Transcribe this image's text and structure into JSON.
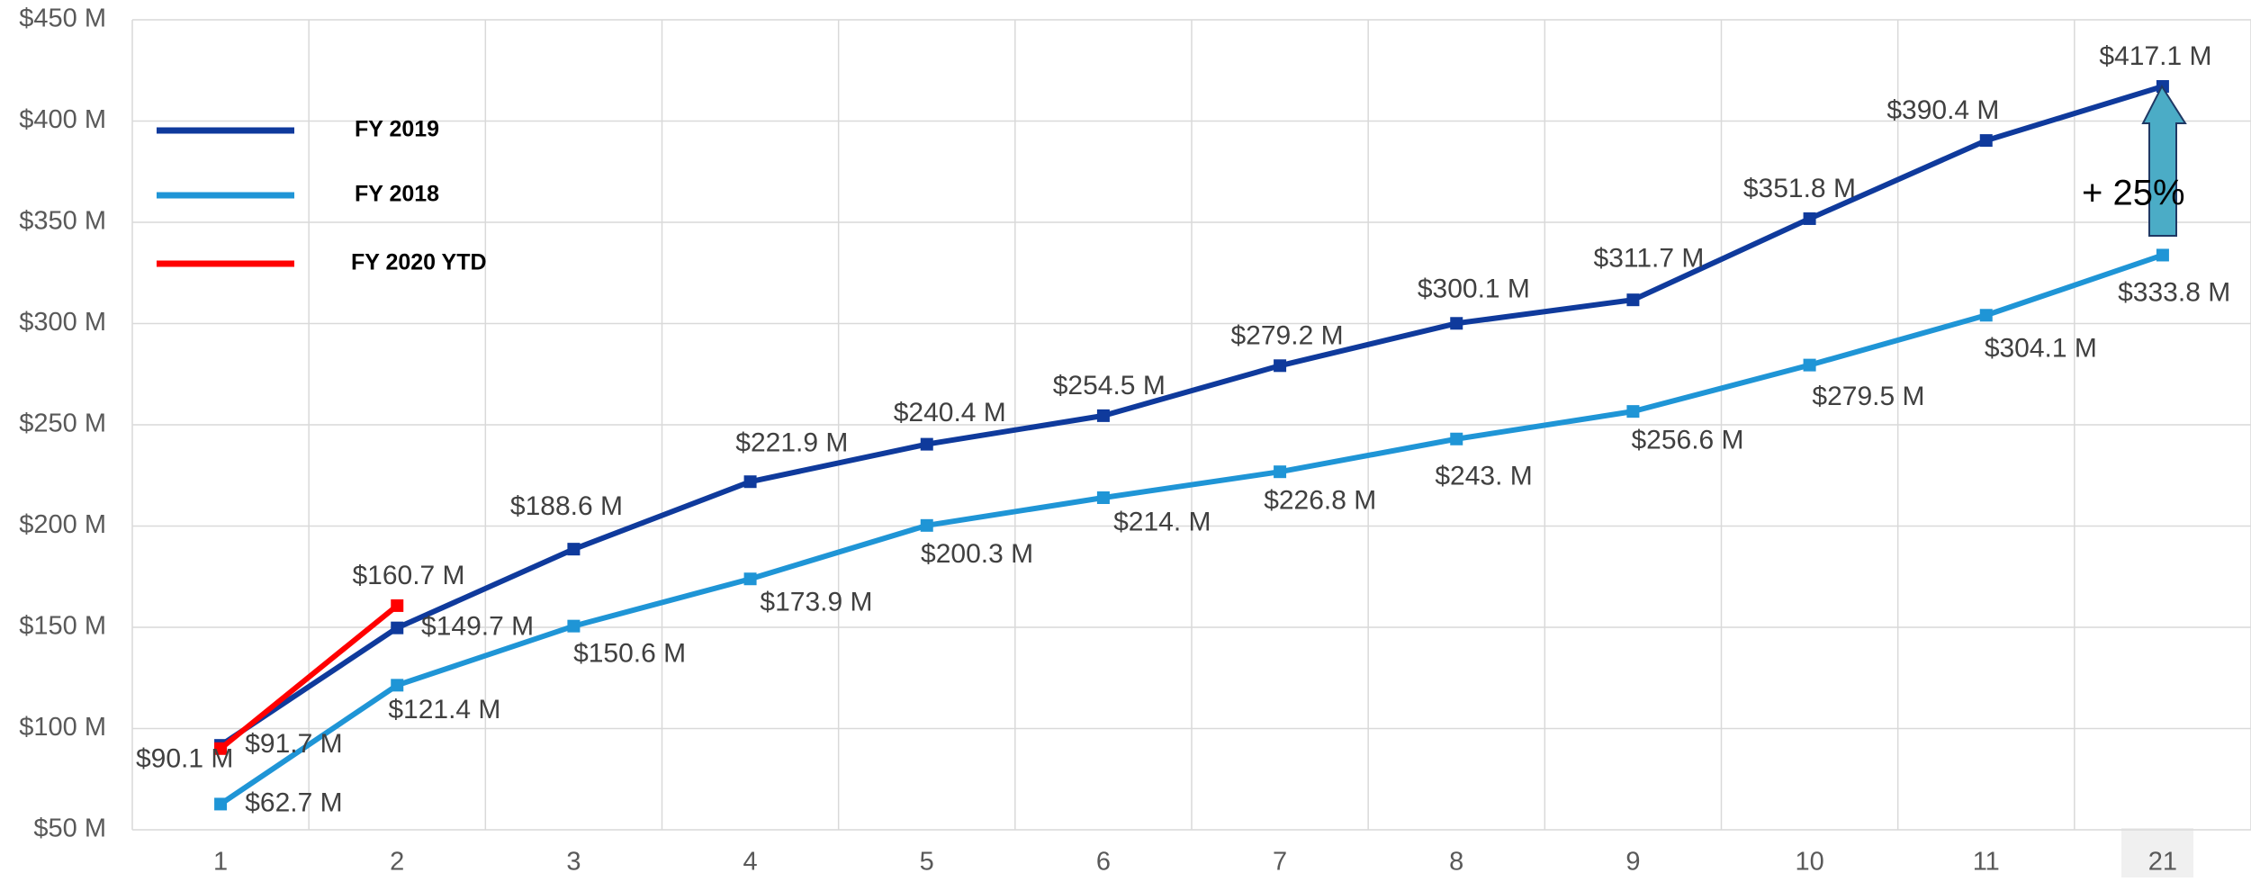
{
  "chart_data": {
    "type": "line",
    "categories": [
      "1",
      "2",
      "3",
      "4",
      "5",
      "6",
      "7",
      "8",
      "9",
      "10",
      "11",
      "21"
    ],
    "series": [
      {
        "name": "FY 2019",
        "color": "#0f3a9c",
        "values": [
          91.7,
          149.7,
          188.6,
          221.9,
          240.4,
          254.5,
          279.2,
          300.1,
          311.7,
          351.8,
          390.4,
          417.1
        ],
        "value_labels": [
          "$91.7 M",
          "$149.7 M",
          "$188.6 M",
          "$221.9 M",
          "$240.4 M",
          "$254.5 M",
          "$279.2 M",
          "$300.1 M",
          "$311.7 M",
          "$351.8 M",
          "$390.4 M",
          "$417.1 M"
        ]
      },
      {
        "name": "FY 2018",
        "color": "#1f95d6",
        "values": [
          62.7,
          121.4,
          150.6,
          173.9,
          200.3,
          214,
          226.8,
          243,
          256.6,
          279.5,
          304.1,
          333.8
        ],
        "value_labels": [
          "$62.7 M",
          "$121.4 M",
          "$150.6 M",
          "$173.9 M",
          "$200.3 M",
          "$214. M",
          "$226.8 M",
          "$243. M",
          "$256.6 M",
          "$279.5 M",
          "$304.1 M",
          "$333.8 M"
        ]
      },
      {
        "name": "FY 2020 YTD",
        "color": "#ff0000",
        "values": [
          90.1,
          160.7,
          null,
          null,
          null,
          null,
          null,
          null,
          null,
          null,
          null,
          null
        ],
        "value_labels": [
          "$90.1 M",
          "$160.7 M",
          null,
          null,
          null,
          null,
          null,
          null,
          null,
          null,
          null,
          null
        ]
      }
    ],
    "ylim": [
      50,
      450
    ],
    "yticks": [
      {
        "value": 50,
        "label": "$50 M"
      },
      {
        "value": 100,
        "label": "$100 M"
      },
      {
        "value": 150,
        "label": "$150 M"
      },
      {
        "value": 200,
        "label": "$200 M"
      },
      {
        "value": 250,
        "label": "$250 M"
      },
      {
        "value": 300,
        "label": "$300 M"
      },
      {
        "value": 350,
        "label": "$350 M"
      },
      {
        "value": 400,
        "label": "$400 M"
      },
      {
        "value": 450,
        "label": "$450 M"
      }
    ],
    "grid": true,
    "annotation": "+ 25%"
  }
}
